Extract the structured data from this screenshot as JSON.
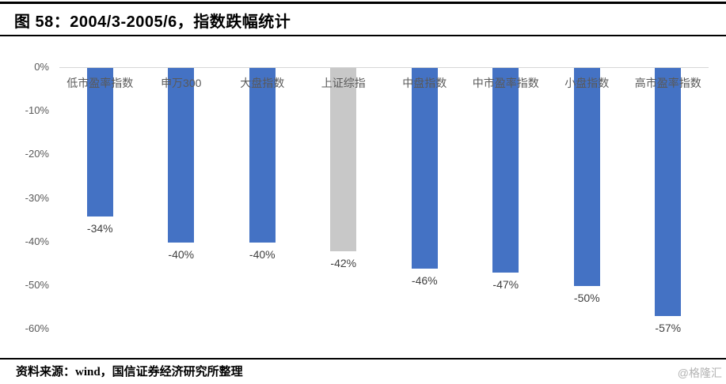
{
  "title": "图 58：2004/3-2005/6，指数跌幅统计",
  "chart_data": {
    "type": "bar",
    "title": "图 58：2004/3-2005/6，指数跌幅统计",
    "categories": [
      "低市盈率指数",
      "申万300",
      "大盘指数",
      "上证综指",
      "中盘指数",
      "中市盈率指数",
      "小盘指数",
      "高市盈率指数"
    ],
    "values": [
      -34,
      -40,
      -40,
      -42,
      -46,
      -47,
      -50,
      -57
    ],
    "data_labels": [
      "-34%",
      "-40%",
      "-40%",
      "-42%",
      "-46%",
      "-47%",
      "-50%",
      "-57%"
    ],
    "y_ticks": [
      0,
      -10,
      -20,
      -30,
      -40,
      -50,
      -60
    ],
    "y_tick_labels": [
      "0%",
      "-10%",
      "-20%",
      "-30%",
      "-40%",
      "-50%",
      "-60%"
    ],
    "ylim": [
      -60,
      0
    ],
    "xlabel": "",
    "ylabel": "",
    "grid": false,
    "legend_position": "none",
    "bar_color": "#4472c4",
    "highlight_index": 3,
    "highlight_color": "#c8c8c8",
    "label_color": "#595959",
    "value_label_color": "#404040"
  },
  "footer": {
    "source": "资料来源：wind，国信证券经济研究所整理",
    "watermark": "@格隆汇"
  }
}
